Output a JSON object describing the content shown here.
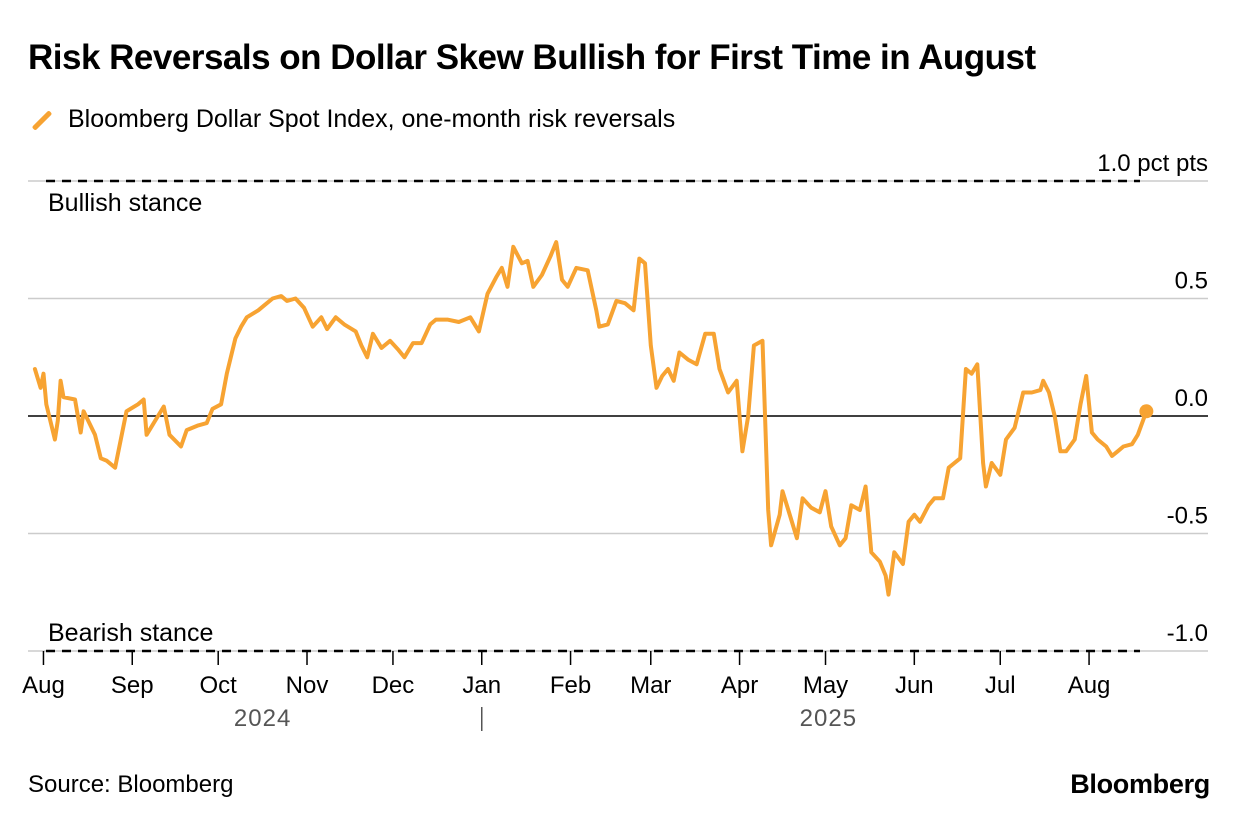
{
  "chart_data": {
    "type": "line",
    "title": "Risk Reversals on Dollar Skew Bullish for First Time in August",
    "series": [
      {
        "name": "Bloomberg Dollar Spot Index, one-month risk reversals",
        "color": "#f7a332",
        "points": [
          [
            "2024-07-29",
            0.2
          ],
          [
            "2024-07-31",
            0.12
          ],
          [
            "2024-08-01",
            0.18
          ],
          [
            "2024-08-02",
            0.05
          ],
          [
            "2024-08-05",
            -0.1
          ],
          [
            "2024-08-06",
            -0.02
          ],
          [
            "2024-08-07",
            0.15
          ],
          [
            "2024-08-08",
            0.08
          ],
          [
            "2024-08-12",
            0.07
          ],
          [
            "2024-08-14",
            -0.07
          ],
          [
            "2024-08-15",
            0.02
          ],
          [
            "2024-08-19",
            -0.08
          ],
          [
            "2024-08-21",
            -0.18
          ],
          [
            "2024-08-23",
            -0.19
          ],
          [
            "2024-08-26",
            -0.22
          ],
          [
            "2024-08-28",
            -0.1
          ],
          [
            "2024-08-30",
            0.02
          ],
          [
            "2024-09-03",
            0.05
          ],
          [
            "2024-09-05",
            0.07
          ],
          [
            "2024-09-06",
            -0.08
          ],
          [
            "2024-09-10",
            0.0
          ],
          [
            "2024-09-12",
            0.04
          ],
          [
            "2024-09-14",
            -0.08
          ],
          [
            "2024-09-18",
            -0.13
          ],
          [
            "2024-09-20",
            -0.06
          ],
          [
            "2024-09-24",
            -0.04
          ],
          [
            "2024-09-27",
            -0.03
          ],
          [
            "2024-09-29",
            0.03
          ],
          [
            "2024-10-02",
            0.05
          ],
          [
            "2024-10-04",
            0.18
          ],
          [
            "2024-10-07",
            0.33
          ],
          [
            "2024-10-09",
            0.38
          ],
          [
            "2024-10-11",
            0.42
          ],
          [
            "2024-10-15",
            0.45
          ],
          [
            "2024-10-17",
            0.47
          ],
          [
            "2024-10-20",
            0.5
          ],
          [
            "2024-10-23",
            0.51
          ],
          [
            "2024-10-25",
            0.49
          ],
          [
            "2024-10-28",
            0.5
          ],
          [
            "2024-10-31",
            0.46
          ],
          [
            "2024-11-03",
            0.38
          ],
          [
            "2024-11-06",
            0.42
          ],
          [
            "2024-11-08",
            0.37
          ],
          [
            "2024-11-11",
            0.42
          ],
          [
            "2024-11-14",
            0.39
          ],
          [
            "2024-11-18",
            0.36
          ],
          [
            "2024-11-20",
            0.3
          ],
          [
            "2024-11-22",
            0.25
          ],
          [
            "2024-11-24",
            0.35
          ],
          [
            "2024-11-27",
            0.29
          ],
          [
            "2024-11-30",
            0.32
          ],
          [
            "2024-12-03",
            0.28
          ],
          [
            "2024-12-05",
            0.25
          ],
          [
            "2024-12-08",
            0.31
          ],
          [
            "2024-12-11",
            0.31
          ],
          [
            "2024-12-14",
            0.39
          ],
          [
            "2024-12-16",
            0.41
          ],
          [
            "2024-12-20",
            0.41
          ],
          [
            "2024-12-24",
            0.4
          ],
          [
            "2024-12-28",
            0.42
          ],
          [
            "2024-12-31",
            0.36
          ],
          [
            "2025-01-03",
            0.52
          ],
          [
            "2025-01-06",
            0.59
          ],
          [
            "2025-01-08",
            0.63
          ],
          [
            "2025-01-10",
            0.55
          ],
          [
            "2025-01-12",
            0.72
          ],
          [
            "2025-01-15",
            0.65
          ],
          [
            "2025-01-17",
            0.66
          ],
          [
            "2025-01-19",
            0.55
          ],
          [
            "2025-01-22",
            0.6
          ],
          [
            "2025-01-25",
            0.68
          ],
          [
            "2025-01-27",
            0.74
          ],
          [
            "2025-01-29",
            0.58
          ],
          [
            "2025-01-31",
            0.55
          ],
          [
            "2025-02-03",
            0.63
          ],
          [
            "2025-02-07",
            0.62
          ],
          [
            "2025-02-10",
            0.45
          ],
          [
            "2025-02-11",
            0.38
          ],
          [
            "2025-02-14",
            0.39
          ],
          [
            "2025-02-17",
            0.49
          ],
          [
            "2025-02-20",
            0.48
          ],
          [
            "2025-02-23",
            0.45
          ],
          [
            "2025-02-25",
            0.67
          ],
          [
            "2025-02-27",
            0.65
          ],
          [
            "2025-03-01",
            0.3
          ],
          [
            "2025-03-03",
            0.12
          ],
          [
            "2025-03-05",
            0.17
          ],
          [
            "2025-03-07",
            0.2
          ],
          [
            "2025-03-09",
            0.15
          ],
          [
            "2025-03-11",
            0.27
          ],
          [
            "2025-03-14",
            0.24
          ],
          [
            "2025-03-17",
            0.22
          ],
          [
            "2025-03-20",
            0.35
          ],
          [
            "2025-03-23",
            0.35
          ],
          [
            "2025-03-25",
            0.2
          ],
          [
            "2025-03-28",
            0.1
          ],
          [
            "2025-03-31",
            0.15
          ],
          [
            "2025-04-02",
            -0.15
          ],
          [
            "2025-04-04",
            0.0
          ],
          [
            "2025-04-06",
            0.3
          ],
          [
            "2025-04-09",
            0.32
          ],
          [
            "2025-04-11",
            -0.4
          ],
          [
            "2025-04-12",
            -0.55
          ],
          [
            "2025-04-15",
            -0.42
          ],
          [
            "2025-04-16",
            -0.32
          ],
          [
            "2025-04-18",
            -0.4
          ],
          [
            "2025-04-21",
            -0.52
          ],
          [
            "2025-04-23",
            -0.35
          ],
          [
            "2025-04-26",
            -0.39
          ],
          [
            "2025-04-29",
            -0.41
          ],
          [
            "2025-05-01",
            -0.32
          ],
          [
            "2025-05-03",
            -0.47
          ],
          [
            "2025-05-06",
            -0.55
          ],
          [
            "2025-05-08",
            -0.52
          ],
          [
            "2025-05-10",
            -0.38
          ],
          [
            "2025-05-13",
            -0.4
          ],
          [
            "2025-05-15",
            -0.3
          ],
          [
            "2025-05-17",
            -0.58
          ],
          [
            "2025-05-20",
            -0.62
          ],
          [
            "2025-05-22",
            -0.68
          ],
          [
            "2025-05-23",
            -0.76
          ],
          [
            "2025-05-25",
            -0.58
          ],
          [
            "2025-05-28",
            -0.63
          ],
          [
            "2025-05-30",
            -0.45
          ],
          [
            "2025-06-01",
            -0.42
          ],
          [
            "2025-06-03",
            -0.45
          ],
          [
            "2025-06-06",
            -0.38
          ],
          [
            "2025-06-08",
            -0.35
          ],
          [
            "2025-06-11",
            -0.35
          ],
          [
            "2025-06-13",
            -0.22
          ],
          [
            "2025-06-15",
            -0.2
          ],
          [
            "2025-06-17",
            -0.18
          ],
          [
            "2025-06-19",
            0.2
          ],
          [
            "2025-06-21",
            0.18
          ],
          [
            "2025-06-23",
            0.22
          ],
          [
            "2025-06-25",
            -0.2
          ],
          [
            "2025-06-26",
            -0.3
          ],
          [
            "2025-06-28",
            -0.2
          ],
          [
            "2025-07-01",
            -0.25
          ],
          [
            "2025-07-03",
            -0.1
          ],
          [
            "2025-07-06",
            -0.05
          ],
          [
            "2025-07-09",
            0.1
          ],
          [
            "2025-07-12",
            0.1
          ],
          [
            "2025-07-15",
            0.11
          ],
          [
            "2025-07-16",
            0.15
          ],
          [
            "2025-07-18",
            0.1
          ],
          [
            "2025-07-20",
            0.0
          ],
          [
            "2025-07-22",
            -0.15
          ],
          [
            "2025-07-24",
            -0.15
          ],
          [
            "2025-07-27",
            -0.1
          ],
          [
            "2025-07-29",
            0.05
          ],
          [
            "2025-07-31",
            0.17
          ],
          [
            "2025-08-02",
            -0.07
          ],
          [
            "2025-08-04",
            -0.1
          ],
          [
            "2025-08-07",
            -0.13
          ],
          [
            "2025-08-09",
            -0.17
          ],
          [
            "2025-08-11",
            -0.15
          ],
          [
            "2025-08-13",
            -0.13
          ],
          [
            "2025-08-16",
            -0.12
          ],
          [
            "2025-08-18",
            -0.08
          ],
          [
            "2025-08-21",
            0.02
          ]
        ]
      }
    ],
    "y_unit": "pct pts",
    "ylim": [
      -1.0,
      1.0
    ],
    "yticks": [
      {
        "value": 1.0,
        "label": "1.0 pct pts"
      },
      {
        "value": 0.5,
        "label": "0.5"
      },
      {
        "value": 0.0,
        "label": "0.0"
      },
      {
        "value": -0.5,
        "label": "-0.5"
      },
      {
        "value": -1.0,
        "label": "-1.0"
      }
    ],
    "xlim": [
      "2024-07-28",
      "2025-08-31"
    ],
    "xticks": [
      {
        "date": "2024-08-01",
        "label": "Aug"
      },
      {
        "date": "2024-09-01",
        "label": "Sep"
      },
      {
        "date": "2024-10-01",
        "label": "Oct"
      },
      {
        "date": "2024-11-01",
        "label": "Nov"
      },
      {
        "date": "2024-12-01",
        "label": "Dec"
      },
      {
        "date": "2025-01-01",
        "label": "Jan"
      },
      {
        "date": "2025-02-01",
        "label": "Feb"
      },
      {
        "date": "2025-03-01",
        "label": "Mar"
      },
      {
        "date": "2025-04-01",
        "label": "Apr"
      },
      {
        "date": "2025-05-01",
        "label": "May"
      },
      {
        "date": "2025-06-01",
        "label": "Jun"
      },
      {
        "date": "2025-07-01",
        "label": "Jul"
      },
      {
        "date": "2025-08-01",
        "label": "Aug"
      }
    ],
    "year_labels": [
      {
        "label": "2024",
        "from": "2024-08-01",
        "to": "2025-01-01"
      },
      {
        "label": "2025",
        "from": "2025-01-01",
        "to": "2025-08-31"
      }
    ],
    "year_divider": "2025-01-01",
    "reference_lines": [
      {
        "value": 1.0,
        "label": "Bullish stance",
        "style": "dashed"
      },
      {
        "value": -1.0,
        "label": "Bearish stance",
        "style": "dashed"
      }
    ],
    "grid": true,
    "zero_line": true,
    "end_marker": true,
    "legend_position": "top-left"
  },
  "source": "Source: Bloomberg",
  "brand": "Bloomberg"
}
